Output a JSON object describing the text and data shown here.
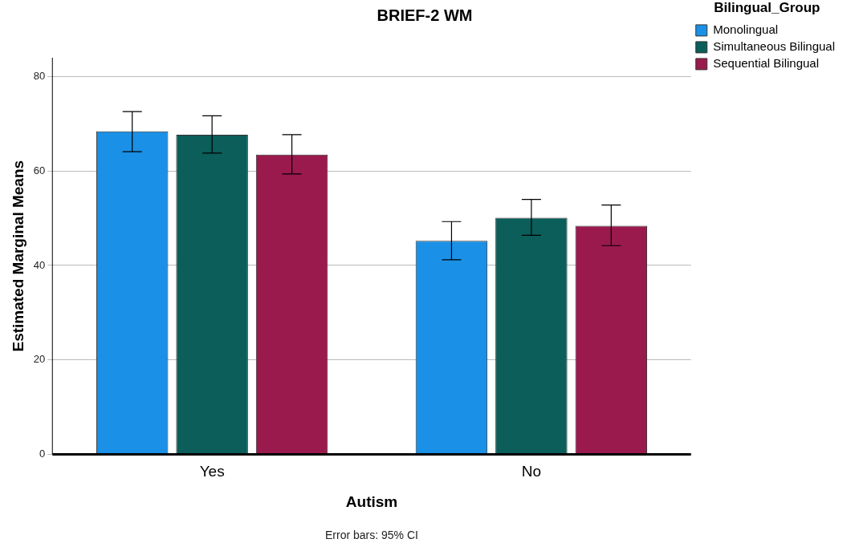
{
  "chart_data": {
    "type": "bar",
    "title": "BRIEF-2 WM",
    "xlabel": "Autism",
    "ylabel": "Estimated Marginal Means",
    "legend_title": "Bilingual_Group",
    "categories": [
      "Yes",
      "No"
    ],
    "series": [
      {
        "name": "Monolingual",
        "color": "#1a90e6",
        "values": [
          68.4,
          45.2
        ],
        "errors": [
          [
            64.1,
            72.6
          ],
          [
            41.2,
            49.3
          ]
        ]
      },
      {
        "name": "Simultaneous Bilingual",
        "color": "#0b5e5a",
        "values": [
          67.7,
          50.1
        ],
        "errors": [
          [
            63.8,
            71.7
          ],
          [
            46.4,
            54.0
          ]
        ]
      },
      {
        "name": "Sequential Bilingual",
        "color": "#9b1a4e",
        "values": [
          63.5,
          48.4
        ],
        "errors": [
          [
            59.4,
            67.7
          ],
          [
            44.2,
            52.8
          ]
        ]
      }
    ],
    "ylim": [
      0,
      84
    ],
    "yticks": [
      0,
      20,
      40,
      60,
      80
    ],
    "grid": "y",
    "legend": "top right",
    "annotations": [
      "Error bars: 95% CI"
    ]
  }
}
